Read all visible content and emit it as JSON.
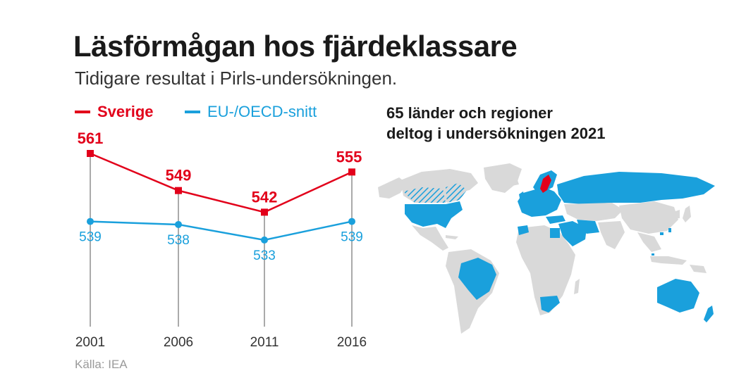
{
  "title": "Läsförmågan hos fjärdeklassare",
  "subtitle": "Tidigare resultat i Pirls-undersökningen.",
  "map_note_line1": "65 länder och regioner",
  "map_note_line2": "deltog i undersökningen 2021",
  "source": "Källa: IEA",
  "colors": {
    "sverige": "#e2001a",
    "eu": "#1aa0dc",
    "land": "#d9d9d9"
  },
  "chart_data": {
    "type": "line",
    "categories": [
      "2001",
      "2006",
      "2011",
      "2016"
    ],
    "series": [
      {
        "name": "Sverige",
        "values": [
          561,
          549,
          542,
          555
        ],
        "color": "#e2001a",
        "marker": "square"
      },
      {
        "name": "EU-/OECD-snitt",
        "values": [
          539,
          538,
          533,
          539
        ],
        "color": "#1aa0dc",
        "marker": "circle"
      }
    ],
    "grid": false,
    "legend": "top-left"
  }
}
